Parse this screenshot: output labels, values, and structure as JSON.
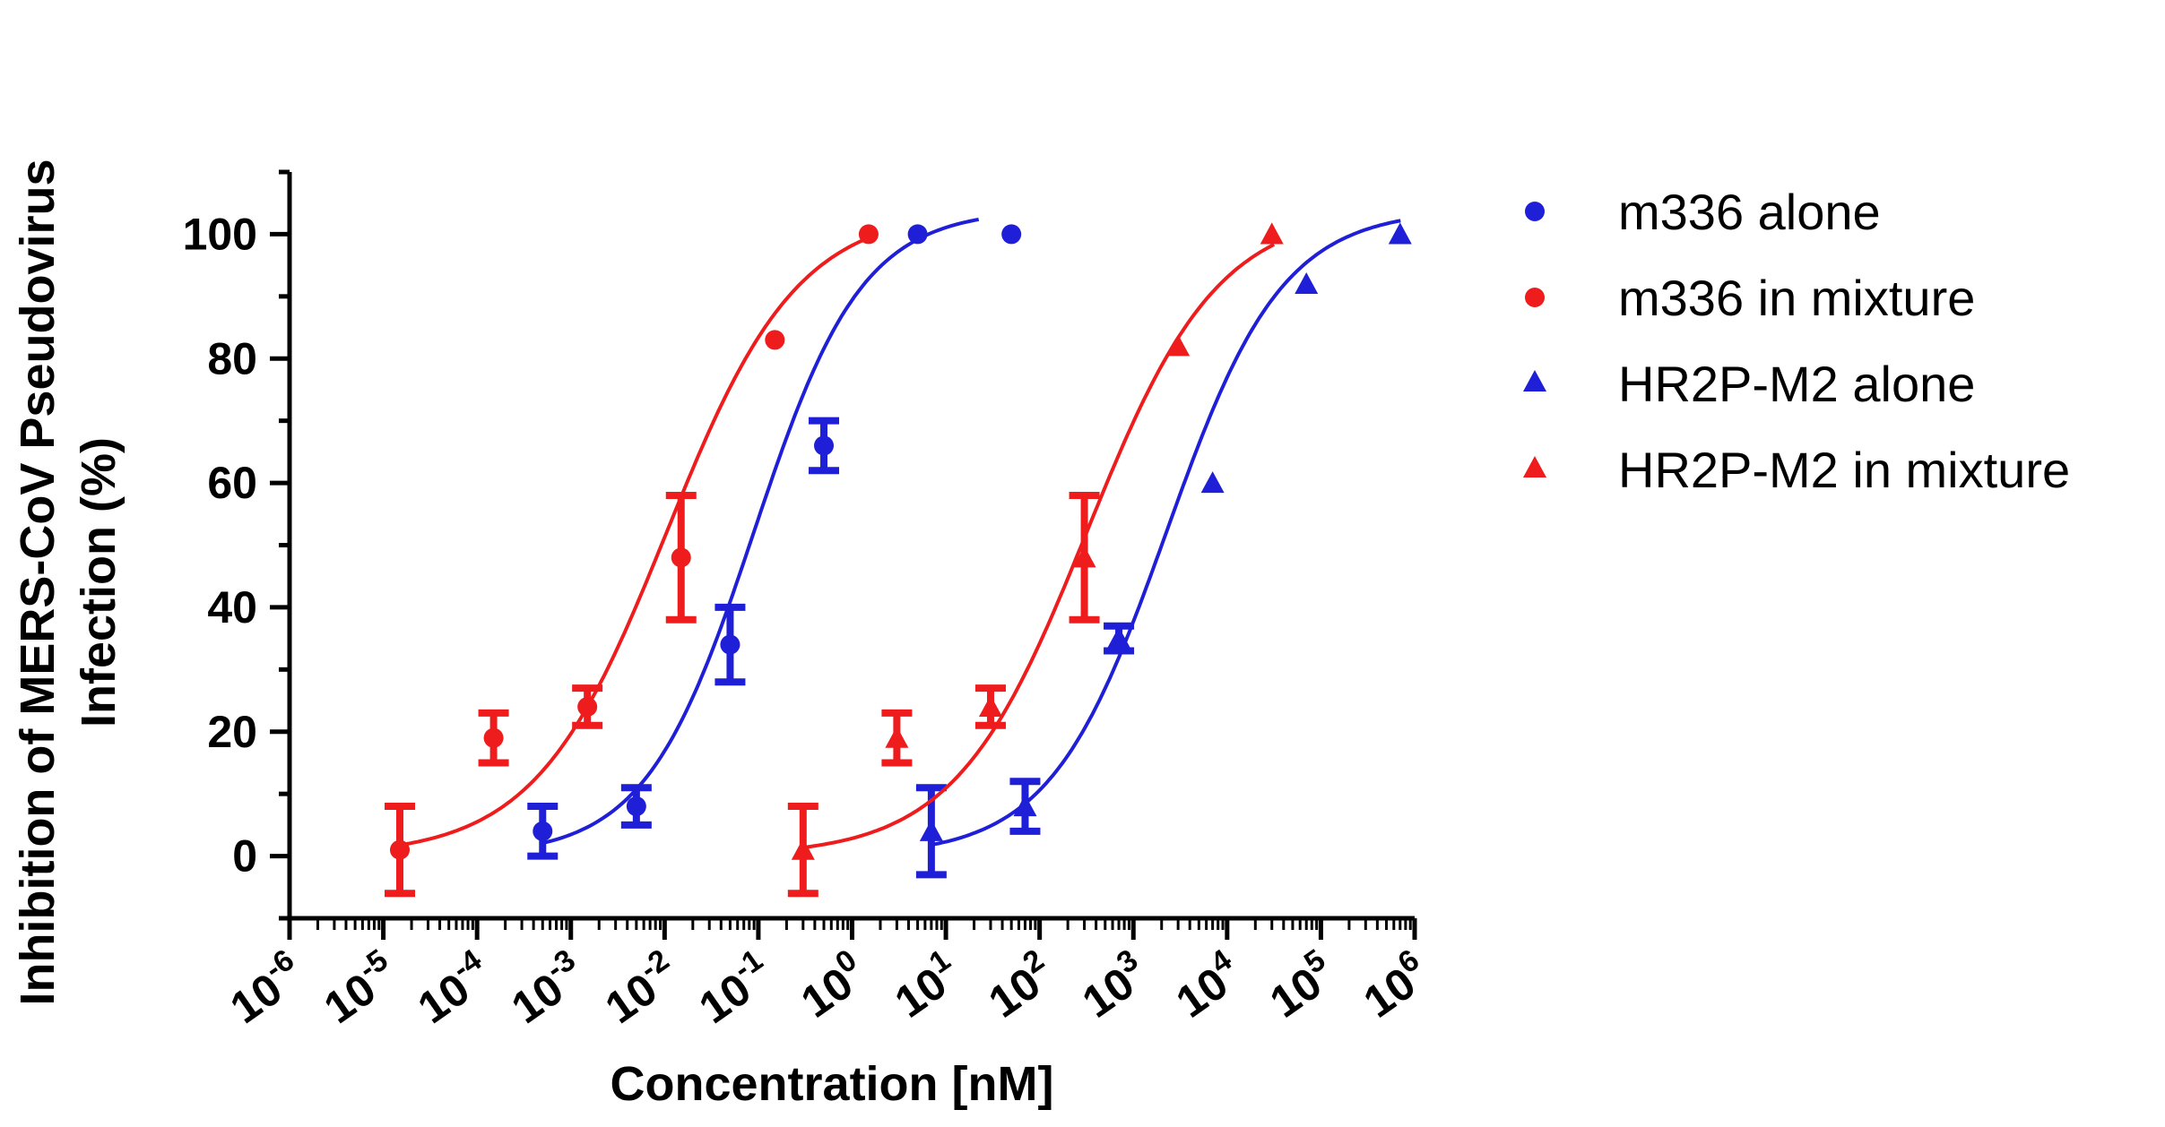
{
  "chart_data": {
    "type": "scatter",
    "title": "",
    "xlabel": "Concentration [nM]",
    "ylabel_lines": [
      "Inhibition of MERS-CoV Pseudovirus",
      "Infection (%)"
    ],
    "x_scale": "log10",
    "xlim_exp": [
      -6,
      6
    ],
    "ylim": [
      -10,
      110
    ],
    "x_tick_exponents": [
      "-6",
      "-5",
      "-4",
      "-3",
      "-2",
      "-1",
      "0",
      "1",
      "2",
      "3",
      "4",
      "5",
      "6"
    ],
    "x_tick_base": "10",
    "y_ticks": [
      0,
      20,
      40,
      60,
      80,
      100
    ],
    "y_tick_labels": [
      "0",
      "20",
      "40",
      "60",
      "80",
      "100"
    ],
    "legend_position": "right",
    "series": [
      {
        "name": "m336 alone",
        "color": "#1f1fd8",
        "marker": "circle",
        "points": [
          {
            "x": 0.0005,
            "y": 4,
            "err": 4
          },
          {
            "x": 0.005,
            "y": 8,
            "err": 3
          },
          {
            "x": 0.05,
            "y": 34,
            "err": 6
          },
          {
            "x": 0.5,
            "y": 66,
            "err": 4
          },
          {
            "x": 5,
            "y": 100,
            "err": 0
          },
          {
            "x": 50,
            "y": 100,
            "err": 0
          }
        ],
        "fit": {
          "bottom": 0,
          "top": 104,
          "log_ec50": -1.05,
          "hill": 0.75,
          "x_range_exp": [
            -3.3,
            1.35
          ]
        }
      },
      {
        "name": "m336 in mixture",
        "color": "#ee1c1c",
        "marker": "circle",
        "points": [
          {
            "x": 1.5e-05,
            "y": 1,
            "err": 7
          },
          {
            "x": 0.00015,
            "y": 19,
            "err": 4
          },
          {
            "x": 0.0015,
            "y": 24,
            "err": 3
          },
          {
            "x": 0.015,
            "y": 48,
            "err": 10
          },
          {
            "x": 0.15,
            "y": 83,
            "err": 0
          },
          {
            "x": 1.5,
            "y": 100,
            "err": 0
          }
        ],
        "fit": {
          "bottom": 0,
          "top": 104,
          "log_ec50": -1.98,
          "hill": 0.62,
          "x_range_exp": [
            -4.82,
            0.18
          ]
        }
      },
      {
        "name": "HR2P-M2 alone",
        "color": "#1f1fd8",
        "marker": "triangle",
        "points": [
          {
            "x": 7,
            "y": 4,
            "err": 7
          },
          {
            "x": 70,
            "y": 8,
            "err": 4
          },
          {
            "x": 700,
            "y": 35,
            "err": 2
          },
          {
            "x": 7000,
            "y": 60,
            "err": 0
          },
          {
            "x": 70000,
            "y": 92,
            "err": 0
          },
          {
            "x": 700000,
            "y": 100,
            "err": 0
          }
        ],
        "fit": {
          "bottom": 0,
          "top": 104,
          "log_ec50": 3.35,
          "hill": 0.7,
          "x_range_exp": [
            0.85,
            5.85
          ]
        }
      },
      {
        "name": "HR2P-M2 in mixture",
        "color": "#ee1c1c",
        "marker": "triangle",
        "points": [
          {
            "x": 0.3,
            "y": 1,
            "err": 7
          },
          {
            "x": 3,
            "y": 19,
            "err": 4
          },
          {
            "x": 30,
            "y": 24,
            "err": 3
          },
          {
            "x": 300,
            "y": 48,
            "err": 10
          },
          {
            "x": 3000,
            "y": 82,
            "err": 0
          },
          {
            "x": 30000,
            "y": 100,
            "err": 0
          }
        ],
        "fit": {
          "bottom": 0,
          "top": 104,
          "log_ec50": 2.5,
          "hill": 0.62,
          "x_range_exp": [
            -0.48,
            4.5
          ]
        }
      }
    ]
  }
}
